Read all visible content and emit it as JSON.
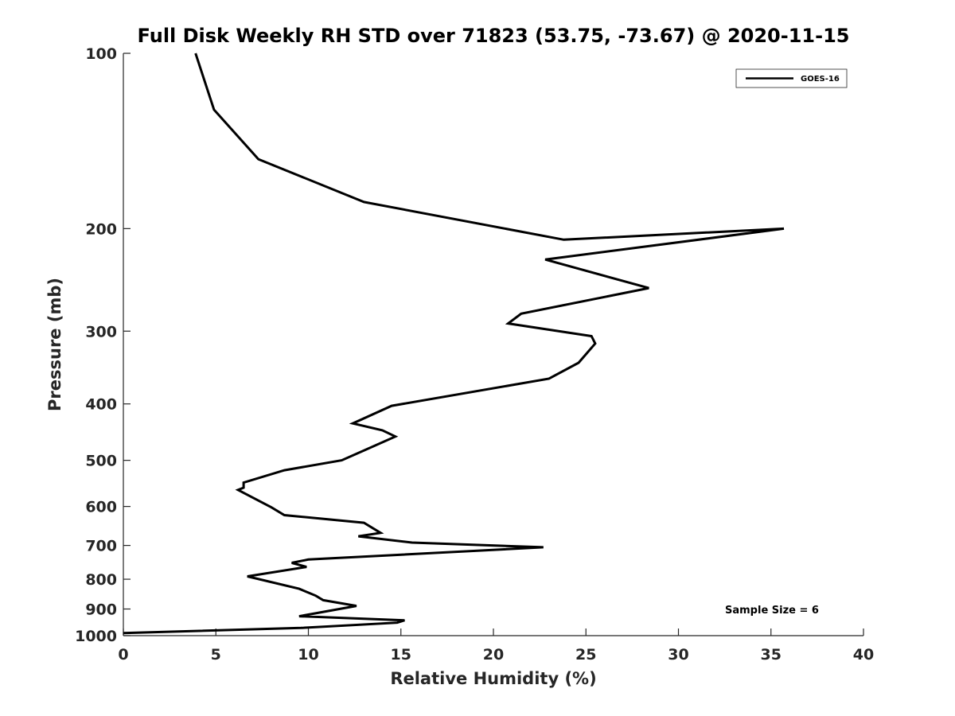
{
  "chart_data": {
    "type": "line",
    "title": "Full Disk Weekly RH STD over 71823 (53.75, -73.67) @ 2020-11-15",
    "xlabel": "Relative Humidity (%)",
    "ylabel": "Pressure (mb)",
    "xlim": [
      0,
      40
    ],
    "ylim": [
      100,
      1000
    ],
    "y_scale": "log",
    "y_reversed": true,
    "x_ticks": [
      0,
      5,
      10,
      15,
      20,
      25,
      30,
      35,
      40
    ],
    "y_ticks": [
      100,
      200,
      300,
      400,
      500,
      600,
      700,
      800,
      900,
      1000
    ],
    "legend_position": "top-right",
    "grid": false,
    "annotation": "Sample Size = 6",
    "series": [
      {
        "name": "GOES-16",
        "color": "#000000",
        "points": [
          [
            3.9,
            100
          ],
          [
            4.9,
            125
          ],
          [
            7.3,
            152
          ],
          [
            13.0,
            180
          ],
          [
            23.8,
            209
          ],
          [
            35.7,
            200
          ],
          [
            22.8,
            226
          ],
          [
            28.4,
            253
          ],
          [
            21.5,
            280
          ],
          [
            20.8,
            291
          ],
          [
            25.3,
            306
          ],
          [
            25.5,
            315
          ],
          [
            24.6,
            340
          ],
          [
            23.0,
            362
          ],
          [
            14.5,
            403
          ],
          [
            12.4,
            432
          ],
          [
            14.0,
            444
          ],
          [
            14.7,
            455
          ],
          [
            13.0,
            481
          ],
          [
            11.8,
            500
          ],
          [
            8.7,
            520
          ],
          [
            6.5,
            546
          ],
          [
            6.5,
            557
          ],
          [
            6.2,
            562
          ],
          [
            8.0,
            602
          ],
          [
            8.7,
            621
          ],
          [
            13.0,
            640
          ],
          [
            13.9,
            666
          ],
          [
            12.7,
            675
          ],
          [
            15.6,
            692
          ],
          [
            22.7,
            705
          ],
          [
            10.0,
            740
          ],
          [
            9.1,
            750
          ],
          [
            9.9,
            762
          ],
          [
            6.7,
            791
          ],
          [
            9.5,
            831
          ],
          [
            10.4,
            854
          ],
          [
            10.8,
            869
          ],
          [
            12.6,
            889
          ],
          [
            9.5,
            926
          ],
          [
            15.2,
            941
          ],
          [
            14.8,
            950
          ],
          [
            9.6,
            970
          ],
          [
            0.0,
            990
          ]
        ]
      }
    ]
  }
}
